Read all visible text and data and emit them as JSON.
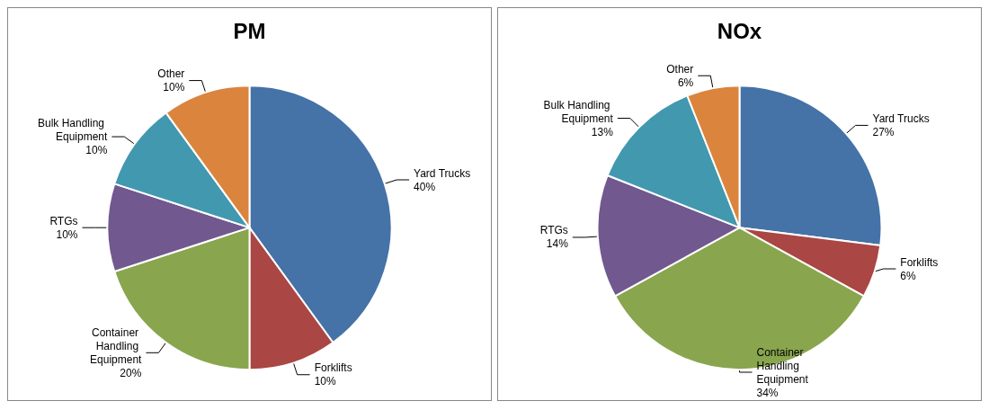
{
  "chart_data": [
    {
      "type": "pie",
      "title": "PM",
      "categories": [
        "Yard Trucks",
        "Forklifts",
        "Container Handling Equipment",
        "RTGs",
        "Bulk Handling Equipment",
        "Other"
      ],
      "values": [
        40,
        10,
        20,
        10,
        10,
        10
      ],
      "value_labels": [
        "40%",
        "10%",
        "20%",
        "10%",
        "10%",
        "10%"
      ],
      "colors": [
        "#4572a7",
        "#aa4643",
        "#89a54e",
        "#71588f",
        "#4198af",
        "#db843d"
      ],
      "legend": false
    },
    {
      "type": "pie",
      "title": "NOx",
      "categories": [
        "Yard Trucks",
        "Forklifts",
        "Container Handling Equipment",
        "RTGs",
        "Bulk Handling Equipment",
        "Other"
      ],
      "values": [
        27,
        6,
        34,
        14,
        13,
        6
      ],
      "value_labels": [
        "27%",
        "6%",
        "34%",
        "14%",
        "13%",
        "6%"
      ],
      "colors": [
        "#4572a7",
        "#aa4643",
        "#89a54e",
        "#71588f",
        "#4198af",
        "#db843d"
      ],
      "legend": false
    }
  ]
}
